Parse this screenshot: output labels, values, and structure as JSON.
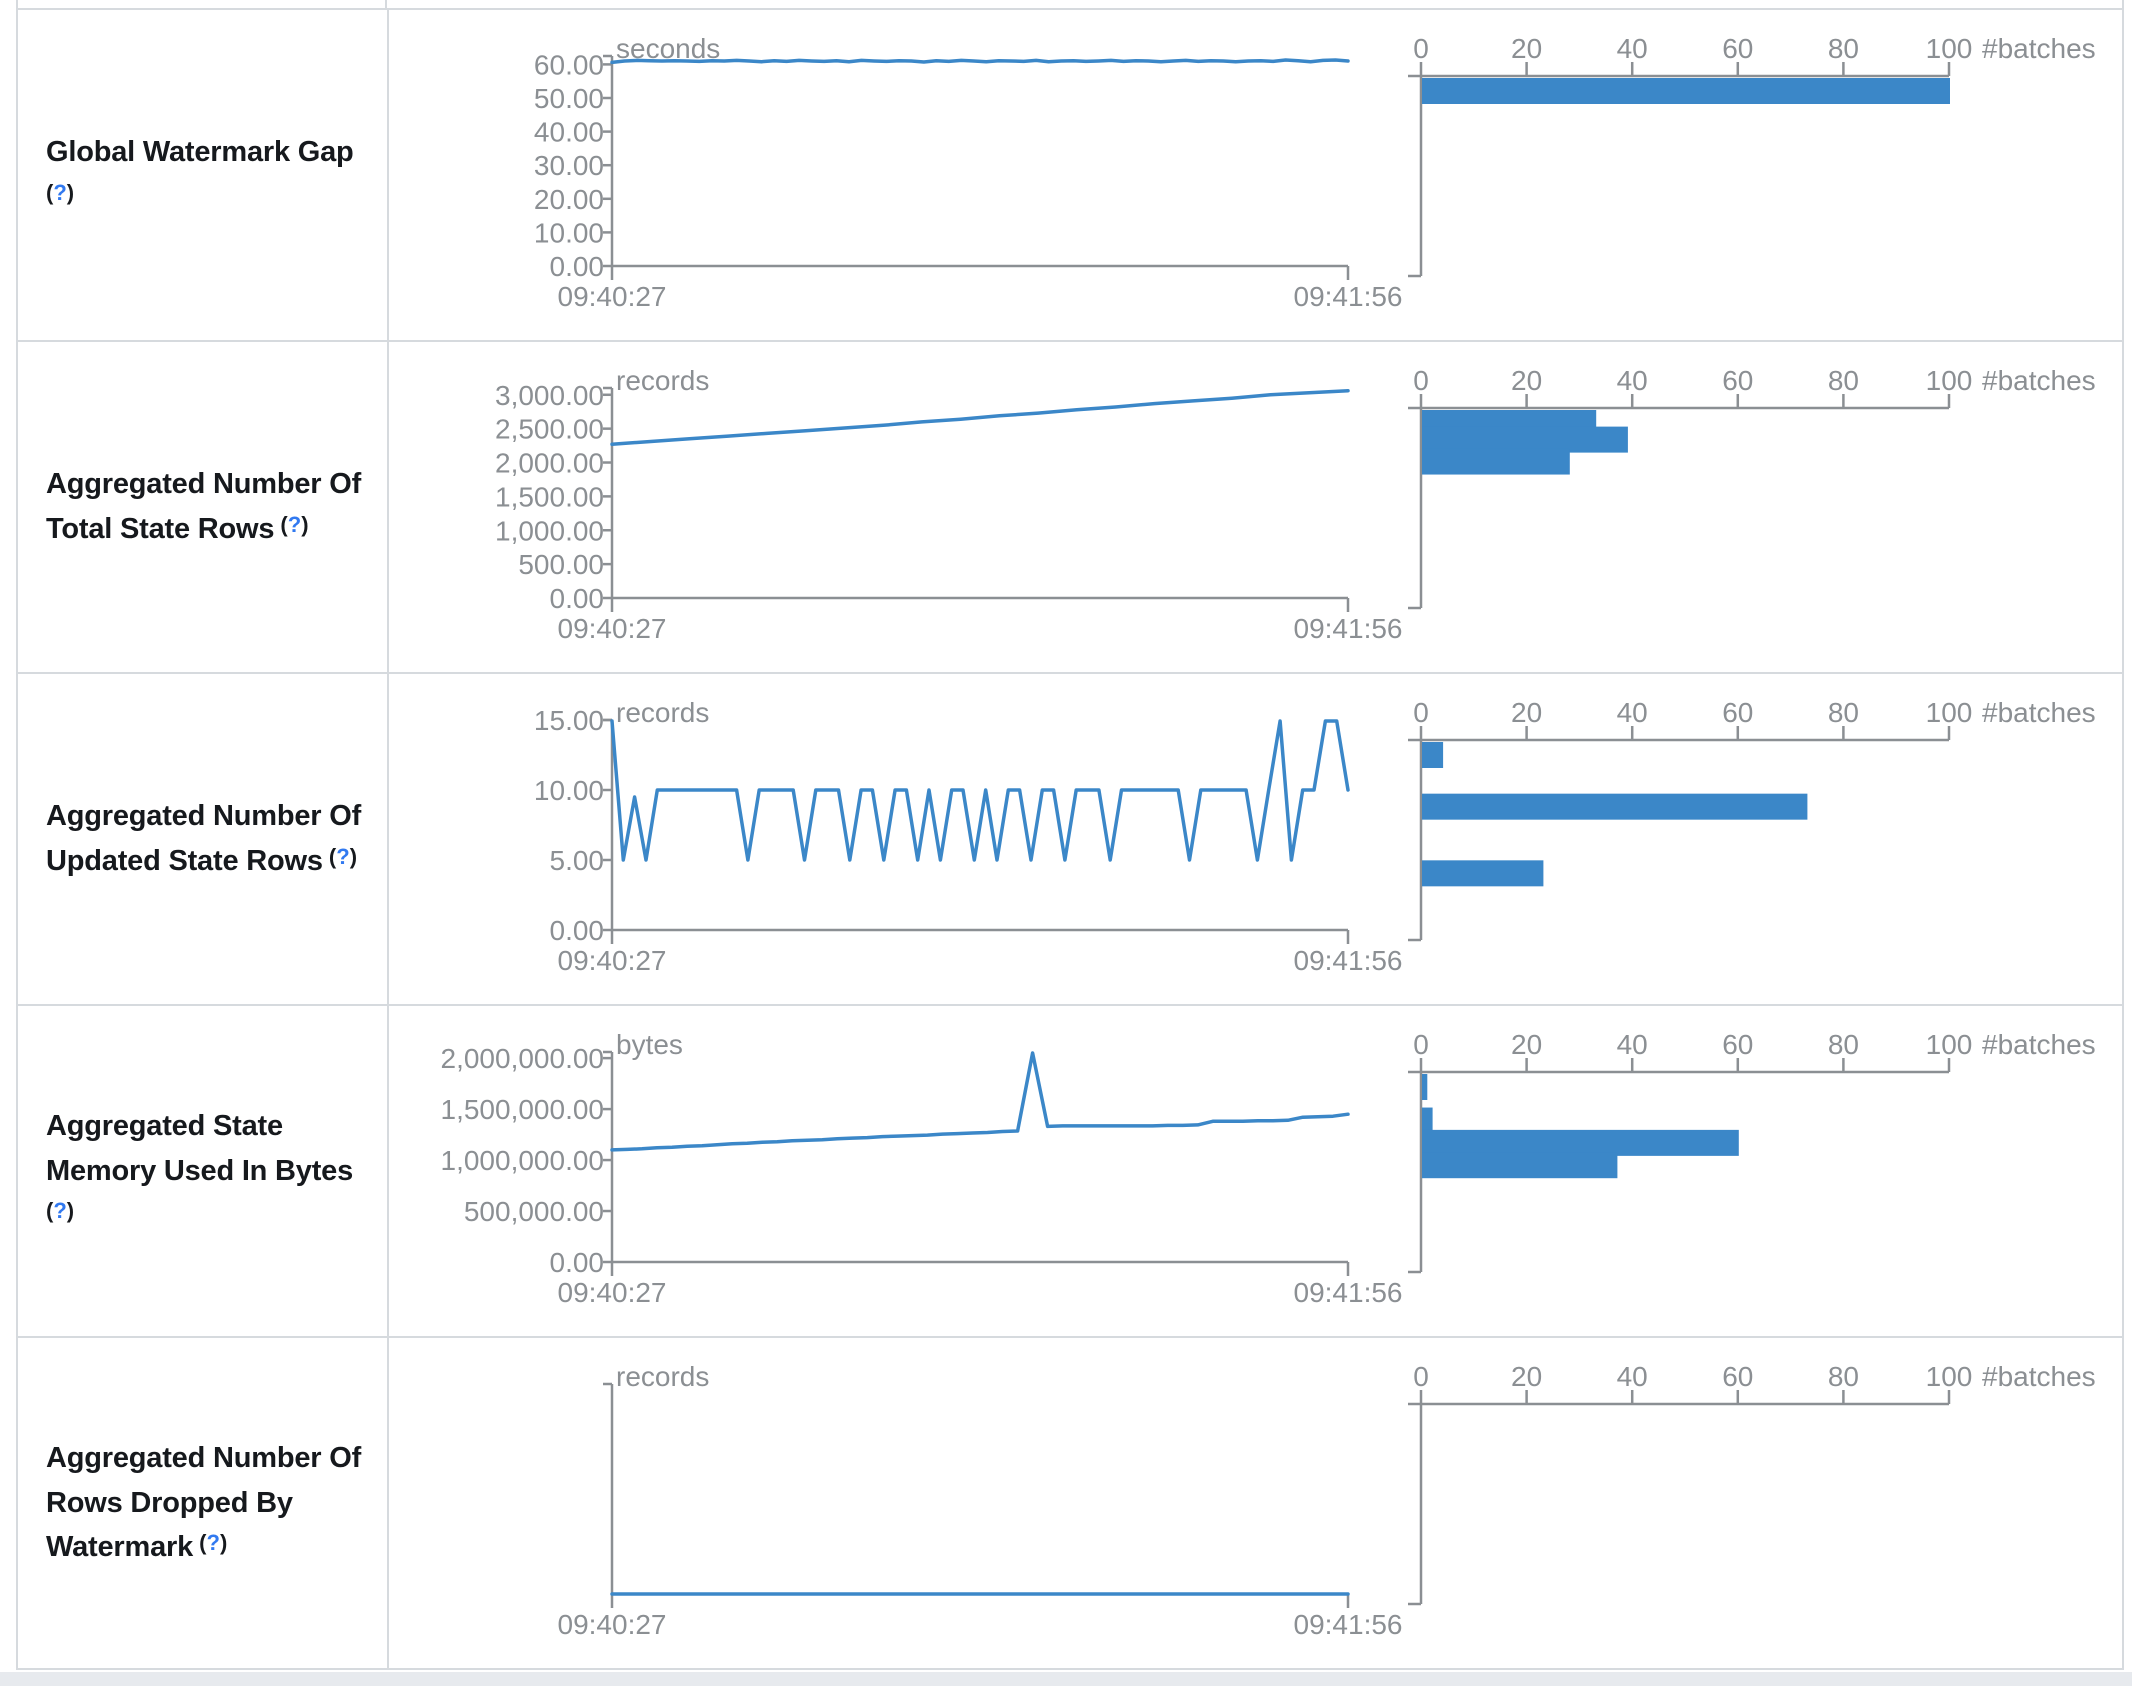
{
  "colors": {
    "accent": "#3b87c8",
    "axis": "#8b8f93",
    "tick_text": "#8b8f93",
    "label_text": "#16191d",
    "help_blue": "#3179f0",
    "border": "#d6dade",
    "footer_strip": "#e7eaee"
  },
  "x_axis": {
    "start": "09:40:27",
    "end": "09:41:56"
  },
  "hist_axis": {
    "label": "#batches",
    "max": 100,
    "ticks": [
      {
        "label": "0",
        "value": 0
      },
      {
        "label": "20",
        "value": 20
      },
      {
        "label": "40",
        "value": 40
      },
      {
        "label": "60",
        "value": 60
      },
      {
        "label": "80",
        "value": 80
      },
      {
        "label": "100",
        "value": 100
      }
    ]
  },
  "rows": [
    {
      "label": "Global Watermark Gap",
      "help": "(?)",
      "unit": "seconds",
      "y_max": 62.5,
      "y_ticks": [
        {
          "label": "60.00",
          "value": 60
        },
        {
          "label": "50.00",
          "value": 50
        },
        {
          "label": "40.00",
          "value": 40
        },
        {
          "label": "30.00",
          "value": 30
        },
        {
          "label": "20.00",
          "value": 20
        },
        {
          "label": "10.00",
          "value": 10
        },
        {
          "label": "0.00",
          "value": 0
        }
      ],
      "timeline": [
        60.6,
        61.0,
        61.2,
        61.1,
        61.0,
        61.1,
        61.0,
        60.9,
        61.1,
        61.0,
        61.2,
        61.0,
        60.8,
        61.1,
        60.9,
        61.2,
        61.0,
        60.9,
        61.1,
        60.8,
        61.2,
        61.0,
        60.9,
        61.1,
        61.0,
        60.7,
        61.1,
        60.9,
        61.2,
        61.0,
        60.8,
        61.1,
        61.0,
        60.9,
        61.2,
        60.8,
        61.0,
        61.1,
        60.9,
        61.0,
        61.2,
        60.9,
        61.1,
        61.0,
        60.8,
        61.0,
        61.2,
        60.9,
        61.1,
        61.0,
        60.8,
        61.0,
        61.1,
        60.9,
        61.3,
        61.1,
        60.8,
        61.2,
        61.3,
        61.0
      ],
      "histogram": [
        {
          "value": 60,
          "count": 100
        }
      ]
    },
    {
      "label": "Aggregated Number Of Total State Rows",
      "help": "(?)",
      "unit": "records",
      "y_max": 3100,
      "y_ticks": [
        {
          "label": "3,000.00",
          "value": 3000
        },
        {
          "label": "2,500.00",
          "value": 2500
        },
        {
          "label": "2,000.00",
          "value": 2000
        },
        {
          "label": "1,500.00",
          "value": 1500
        },
        {
          "label": "1,000.00",
          "value": 1000
        },
        {
          "label": "500.00",
          "value": 500
        },
        {
          "label": "0.00",
          "value": 0
        }
      ],
      "timeline": [
        2270,
        2310,
        2350,
        2390,
        2430,
        2470,
        2510,
        2550,
        2600,
        2640,
        2690,
        2730,
        2780,
        2820,
        2870,
        2910,
        2950,
        3000,
        3030,
        3060
      ],
      "histogram": [
        {
          "value": 2950,
          "count": 33
        },
        {
          "value": 2610,
          "count": 39
        },
        {
          "value": 2270,
          "count": 28
        }
      ]
    },
    {
      "label": "Aggregated Number Of Updated State Rows",
      "help": "(?)",
      "unit": "records",
      "y_max": 15,
      "y_ticks": [
        {
          "label": "15.00",
          "value": 15
        },
        {
          "label": "10.00",
          "value": 10
        },
        {
          "label": "5.00",
          "value": 5
        },
        {
          "label": "0.00",
          "value": 0
        }
      ],
      "timeline": [
        15,
        5,
        9.5,
        5,
        10,
        10,
        10,
        10,
        10,
        10,
        10,
        10,
        5,
        10,
        10,
        10,
        10,
        5,
        10,
        10,
        10,
        5,
        10,
        10,
        5,
        10,
        10,
        5,
        10,
        5,
        10,
        10,
        5,
        10,
        5,
        10,
        10,
        5,
        10,
        10,
        5,
        10,
        10,
        10,
        5,
        10,
        10,
        10,
        10,
        10,
        10,
        5,
        10,
        10,
        10,
        10,
        10,
        5,
        10,
        15,
        5,
        10,
        10,
        15,
        15,
        10
      ],
      "histogram": [
        {
          "value": 15,
          "count": 4
        },
        {
          "value": 10,
          "count": 73
        },
        {
          "value": 5,
          "count": 23
        }
      ]
    },
    {
      "label": "Aggregated State Memory Used In Bytes",
      "help": "(?)",
      "unit": "bytes",
      "y_max": 2060000,
      "y_ticks": [
        {
          "label": "2,000,000.00",
          "value": 2000000
        },
        {
          "label": "1,500,000.00",
          "value": 1500000
        },
        {
          "label": "1,000,000.00",
          "value": 1000000
        },
        {
          "label": "500,000.00",
          "value": 500000
        },
        {
          "label": "0.00",
          "value": 0
        }
      ],
      "timeline": [
        1100000,
        1105000,
        1110000,
        1120000,
        1125000,
        1135000,
        1140000,
        1150000,
        1160000,
        1165000,
        1175000,
        1180000,
        1190000,
        1195000,
        1200000,
        1210000,
        1215000,
        1220000,
        1230000,
        1235000,
        1240000,
        1245000,
        1255000,
        1260000,
        1265000,
        1270000,
        1280000,
        1285000,
        2050000,
        1330000,
        1335000,
        1335000,
        1335000,
        1335000,
        1335000,
        1335000,
        1335000,
        1340000,
        1340000,
        1345000,
        1380000,
        1380000,
        1380000,
        1385000,
        1385000,
        1390000,
        1420000,
        1425000,
        1430000,
        1450000
      ],
      "histogram": [
        {
          "value": 2020000,
          "count": 1
        },
        {
          "value": 1560000,
          "count": 2
        },
        {
          "value": 1330000,
          "count": 60
        },
        {
          "value": 1100000,
          "count": 37
        }
      ]
    },
    {
      "label": "Aggregated Number Of Rows Dropped By Watermark",
      "help": "(?)",
      "unit": "records",
      "y_max": 1,
      "y_ticks": [],
      "timeline": [
        0,
        0
      ],
      "histogram": []
    }
  ]
}
